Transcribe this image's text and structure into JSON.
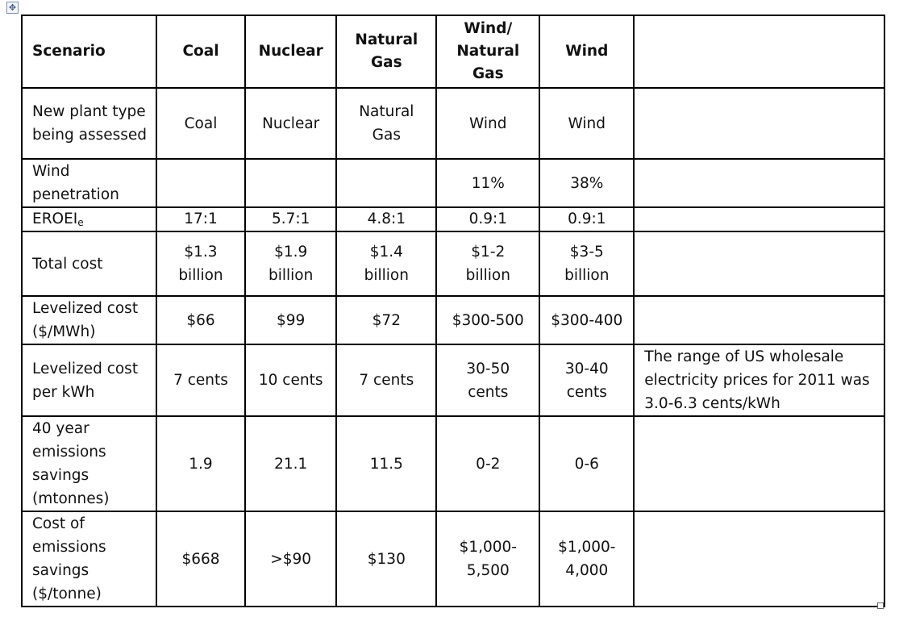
{
  "header": {
    "scenario": "Scenario",
    "coal": "Coal",
    "nuclear": "Nuclear",
    "natural_gas": "Natural Gas",
    "wind_natural_gas": "Wind/ Natural Gas",
    "wind": "Wind",
    "notes": ""
  },
  "rows": {
    "plant_type": {
      "label": "New plant type being assessed",
      "coal": "Coal",
      "nuclear": "Nuclear",
      "natural_gas": "Natural Gas",
      "wind_natural_gas": "Wind",
      "wind": "Wind",
      "note": ""
    },
    "wind_penetration": {
      "label": "Wind penetration",
      "coal": "",
      "nuclear": "",
      "natural_gas": "",
      "wind_natural_gas": "11%",
      "wind": "38%",
      "note": ""
    },
    "eroei": {
      "label": "EROEI",
      "label_sub": "e",
      "coal": "17:1",
      "nuclear": "5.7:1",
      "natural_gas": "4.8:1",
      "wind_natural_gas": "0.9:1",
      "wind": "0.9:1",
      "note": ""
    },
    "total_cost": {
      "label": "Total cost",
      "coal": "$1.3 billion",
      "nuclear": "$1.9 billion",
      "natural_gas": "$1.4 billion",
      "wind_natural_gas": "$1-2 billion",
      "wind": "$3-5 billion",
      "note": ""
    },
    "levelized_cost_mwh": {
      "label": "Levelized cost ($/MWh)",
      "coal": "$66",
      "nuclear": "$99",
      "natural_gas": "$72",
      "wind_natural_gas": "$300-500",
      "wind": "$300-400",
      "note": ""
    },
    "levelized_cost_kwh": {
      "label": "Levelized cost per kWh",
      "coal": "7 cents",
      "nuclear": "10 cents",
      "natural_gas": "7 cents",
      "wind_natural_gas": "30-50 cents",
      "wind": "30-40 cents",
      "note": "The range of US wholesale electricity prices for 2011  was 3.0-6.3 cents/kWh"
    },
    "emissions_savings": {
      "label": "40 year emissions savings (mtonnes)",
      "coal": "1.9",
      "nuclear": "21.1",
      "natural_gas": "11.5",
      "wind_natural_gas": "0-2",
      "wind": "0-6",
      "note": ""
    },
    "cost_of_savings": {
      "label": "Cost of emissions savings ($/tonne)",
      "coal": "$668",
      "nuclear": ">$90",
      "natural_gas": "$130",
      "wind_natural_gas": "$1,000-5,500",
      "wind": "$1,000-4,000",
      "note": ""
    }
  },
  "icons": {
    "move_handle": "four-arrows-move-icon",
    "resize_handle": "square-resize-icon"
  }
}
